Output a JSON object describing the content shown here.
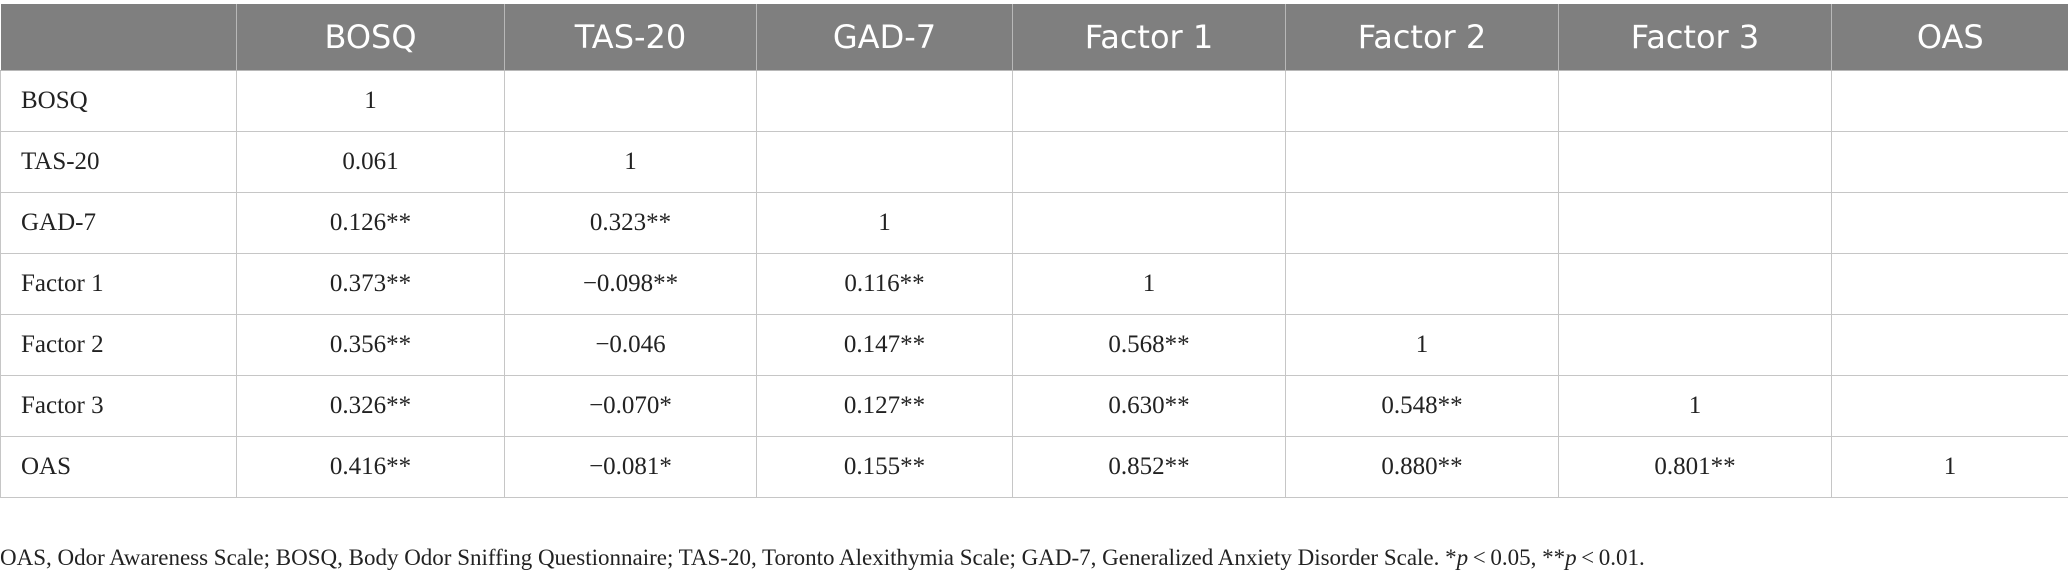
{
  "table": {
    "headers": [
      "",
      "BOSQ",
      "TAS-20",
      "GAD-7",
      "Factor 1",
      "Factor 2",
      "Factor 3",
      "OAS"
    ],
    "rows": [
      [
        "BOSQ",
        "1",
        "",
        "",
        "",
        "",
        "",
        ""
      ],
      [
        "TAS-20",
        "0.061",
        "1",
        "",
        "",
        "",
        "",
        ""
      ],
      [
        "GAD-7",
        "0.126**",
        "0.323**",
        "1",
        "",
        "",
        "",
        ""
      ],
      [
        "Factor 1",
        "0.373**",
        "−0.098**",
        "0.116**",
        "1",
        "",
        "",
        ""
      ],
      [
        "Factor 2",
        "0.356**",
        "−0.046",
        "0.147**",
        "0.568**",
        "1",
        "",
        ""
      ],
      [
        "Factor 3",
        "0.326**",
        "−0.070*",
        "0.127**",
        "0.630**",
        "0.548**",
        "1",
        ""
      ],
      [
        "OAS",
        "0.416**",
        "−0.081*",
        "0.155**",
        "0.852**",
        "0.880**",
        "0.801**",
        "1"
      ]
    ]
  },
  "colors": {
    "header_bg": "#7f7f7f",
    "header_text": "#ffffff",
    "grid": "#c6c6c6"
  },
  "footnote": {
    "text": "OAS, Odor Awareness Scale; BOSQ, Body Odor Sniffing Questionnaire; TAS-20, Toronto Alexithymia Scale; GAD-7, Generalized Anxiety Disorder Scale. *",
    "p1_var": "p",
    "p1_rest": " < 0.05, **",
    "p2_var": "p",
    "p2_rest": " < 0.01."
  }
}
